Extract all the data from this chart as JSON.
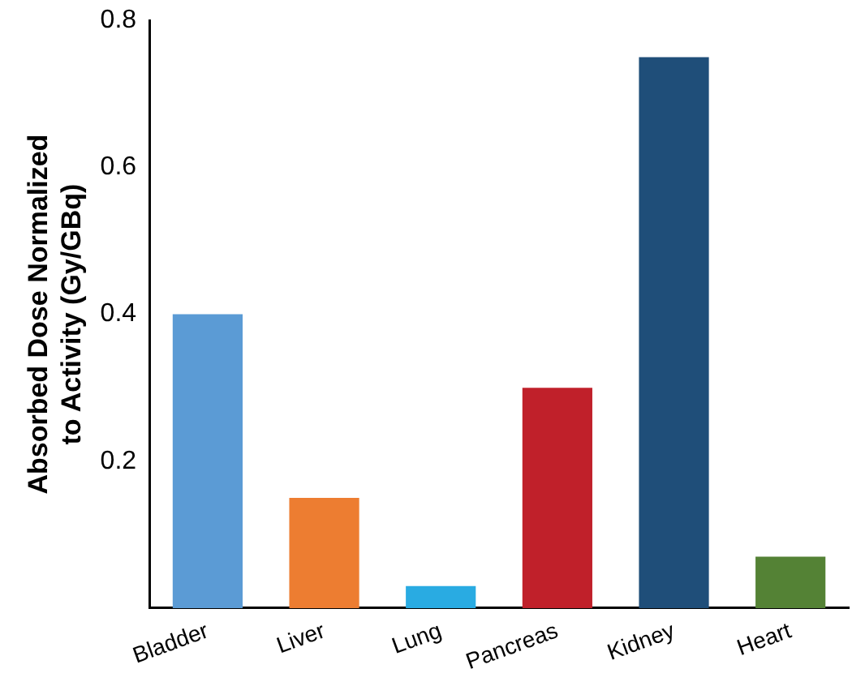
{
  "chart_data": {
    "type": "bar",
    "ylabel": "Absorbed Dose Normalized to Activity (Gy/GBq)",
    "categories": [
      "Bladder",
      "Liver",
      "Lung",
      "Pancreas",
      "Kidney",
      "Heart"
    ],
    "values": [
      0.4,
      0.15,
      0.03,
      0.3,
      0.75,
      0.07
    ],
    "colors": [
      "#5b9bd5",
      "#ed7d31",
      "#29abe2",
      "#c0202a",
      "#1f4e79",
      "#548235"
    ],
    "ylim": [
      0,
      0.8
    ],
    "yticks": [
      0.2,
      0.4,
      0.6,
      0.8
    ],
    "grid": false,
    "legend": false
  }
}
